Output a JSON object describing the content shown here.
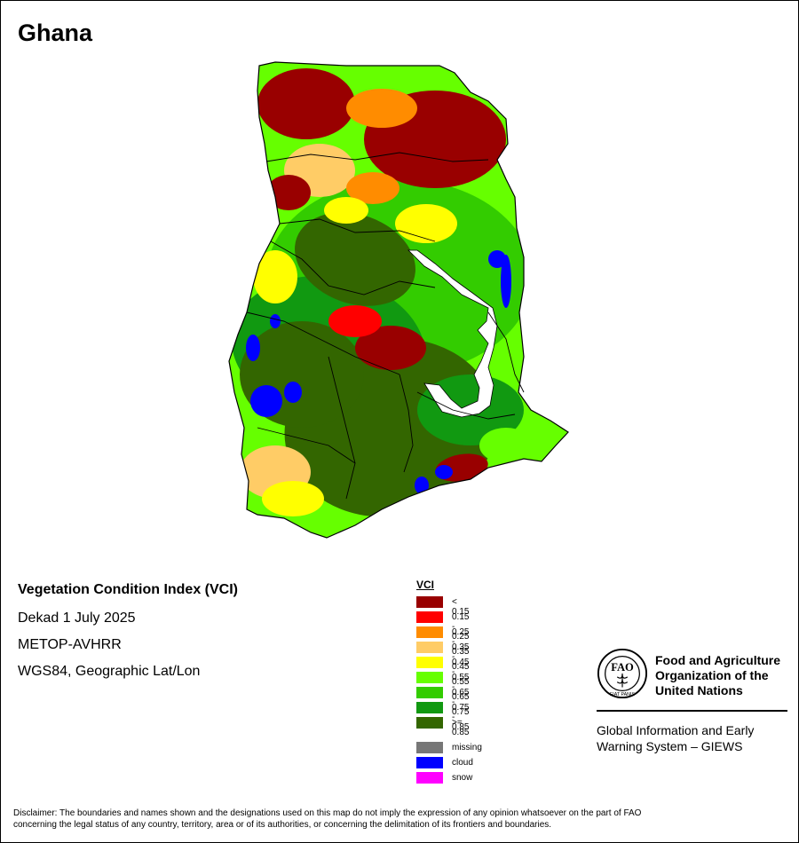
{
  "title": "Ghana",
  "map": {
    "alt": "Ghana vegetation condition index map",
    "colors": {
      "lt015": "#990000",
      "c015_025": "#ff0000",
      "c025_035": "#ff8c00",
      "c035_045": "#ffcc66",
      "c045_055": "#ffff00",
      "c055_065": "#66ff00",
      "c065_075": "#33cc00",
      "c075_085": "#119911",
      "ge085": "#336600",
      "missing": "#777777",
      "cloud": "#0000ff",
      "snow": "#ff00ff",
      "water": "#ffffff",
      "border": "#000000"
    }
  },
  "info": {
    "index_title": "Vegetation Condition Index (VCI)",
    "period": "Dekad 1 July 2025",
    "sensor": "METOP-AVHRR",
    "projection": "WGS84, Geographic Lat/Lon"
  },
  "legend": {
    "title": "VCI",
    "classes": [
      {
        "label": "< 0.15",
        "color": "#990000"
      },
      {
        "label": "0.15 - 0.25",
        "color": "#ff0000"
      },
      {
        "label": "0.25 - 0.35",
        "color": "#ff8c00"
      },
      {
        "label": "0.35 - 0.45",
        "color": "#ffcc66"
      },
      {
        "label": "0.45 - 0.55",
        "color": "#ffff00"
      },
      {
        "label": "0.55 - 0.65",
        "color": "#66ff00"
      },
      {
        "label": "0.65 - 0.75",
        "color": "#33cc00"
      },
      {
        "label": "0.75 - 0.85",
        "color": "#119911"
      },
      {
        "label": ">= 0.85",
        "color": "#336600"
      }
    ],
    "extra": [
      {
        "label": "missing",
        "color": "#777777"
      },
      {
        "label": "cloud",
        "color": "#0000ff"
      },
      {
        "label": "snow",
        "color": "#ff00ff"
      }
    ]
  },
  "fao": {
    "org_line1": "Food and Agriculture",
    "org_line2": "Organization of the",
    "org_line3": "United Nations",
    "logo_text": "FAO",
    "logo_motto": "FIAT PANIS",
    "system_line1": "Global Information and Early",
    "system_line2": "Warning System – GIEWS"
  },
  "disclaimer": {
    "line1": "Disclaimer: The boundaries and names shown and the designations used on this map do not imply the expression of any opinion whatsoever on the part of FAO",
    "line2": "concerning the legal status of any country, territory, area or of its authorities, or concerning the delimitation of its frontiers and boundaries."
  }
}
